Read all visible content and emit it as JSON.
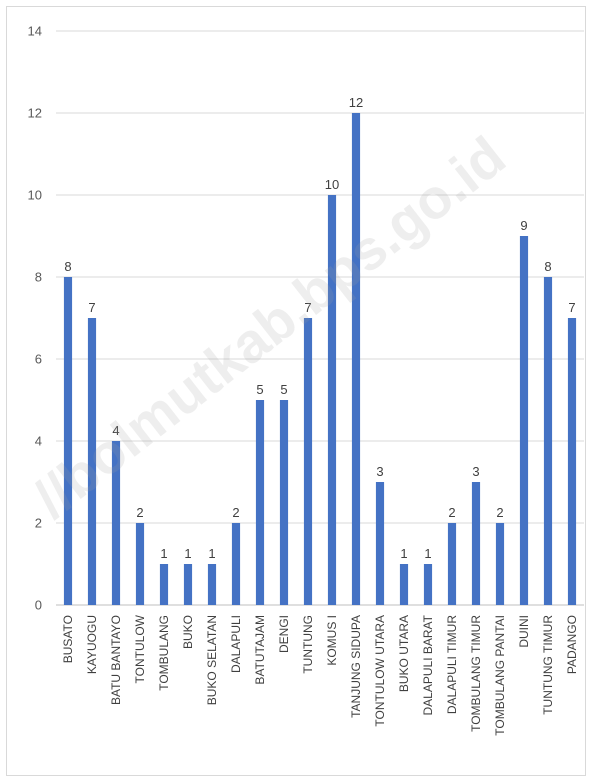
{
  "chart_data": {
    "type": "bar",
    "title": "",
    "xlabel": "",
    "ylabel": "",
    "categories": [
      "BUSATO",
      "KAYUOGU",
      "BATU BANTAYO",
      "TONTULOW",
      "TOMBULANG",
      "BUKO",
      "BUKO SELATAN",
      "DALAPULI",
      "BATUTAJAM",
      "DENGI",
      "TUNTUNG",
      "KOMUS I",
      "TANJUNG SIDUPA",
      "TONTULOW UTARA",
      "BUKO UTARA",
      "DALAPULI BARAT",
      "DALAPULI TIMUR",
      "TOMBULANG TIMUR",
      "TOMBULANG PANTAI",
      "DUINI",
      "TUNTUNG TIMUR",
      "PADANGO"
    ],
    "values": [
      8,
      7,
      4,
      2,
      1,
      1,
      1,
      2,
      5,
      5,
      7,
      10,
      12,
      3,
      1,
      1,
      2,
      3,
      2,
      9,
      8,
      7
    ],
    "ylim": [
      0,
      14
    ],
    "yticks": [
      0,
      2,
      4,
      6,
      8,
      10,
      12,
      14
    ],
    "grid": true,
    "legend": "none",
    "bar_color": "#4472c4",
    "data_labels": true
  },
  "watermark": "//bolmutkab.bps.go.id"
}
